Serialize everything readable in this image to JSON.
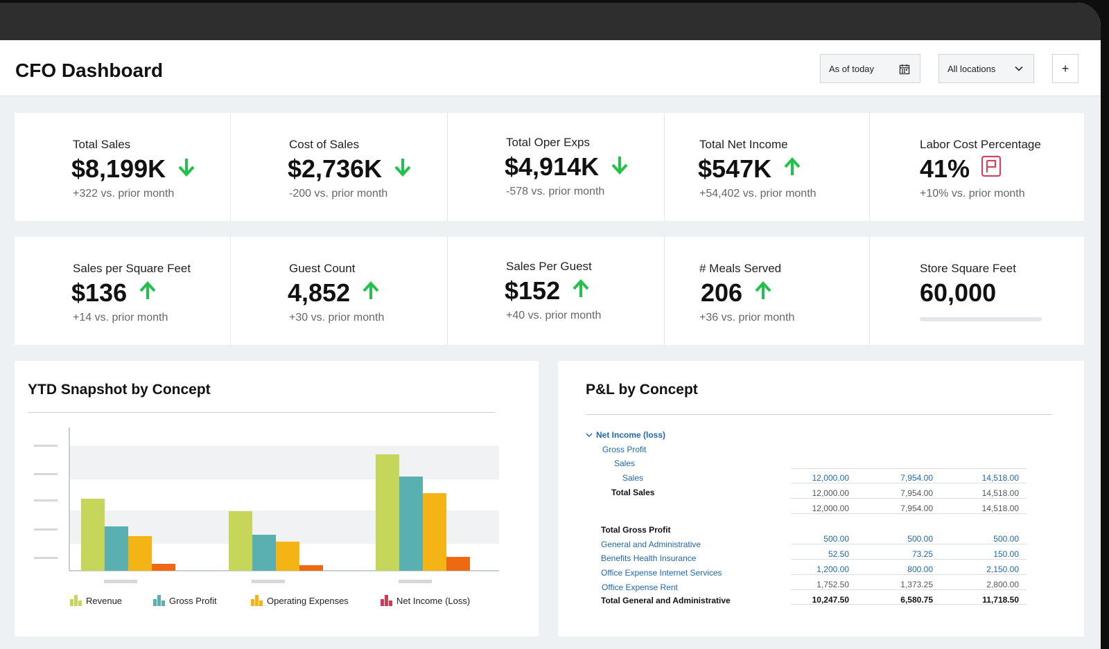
{
  "header": {
    "title": "CFO Dashboard",
    "date_filter": "As of today",
    "location_filter": "All locations",
    "add_label": "+"
  },
  "colors": {
    "up": "#22c24a",
    "down": "#22c24a",
    "flag": "#d0455e",
    "link": "#1f67ad"
  },
  "kpis_row1": [
    {
      "label": "Total Sales",
      "value": "$8,199K",
      "trend": "down",
      "delta": "+322 vs. prior month"
    },
    {
      "label": "Cost of Sales",
      "value": "$2,736K",
      "trend": "down",
      "delta": "-200 vs. prior month"
    },
    {
      "label": "Total Oper Exps",
      "value": "$4,914K",
      "trend": "down",
      "delta": "-578 vs. prior month"
    },
    {
      "label": "Total Net Income",
      "value": "$547K",
      "trend": "up",
      "delta": "+54,402 vs. prior month"
    },
    {
      "label": "Labor Cost Percentage",
      "value": "41%",
      "trend": "flag",
      "delta": "+10% vs. prior month"
    }
  ],
  "kpis_row2": [
    {
      "label": "Sales per Square Feet",
      "value": "$136",
      "trend": "up",
      "delta": "+14 vs. prior month"
    },
    {
      "label": "Guest Count",
      "value": "4,852",
      "trend": "up",
      "delta": "+30 vs. prior month"
    },
    {
      "label": "Sales Per Guest",
      "value": "$152",
      "trend": "up",
      "delta": "+40 vs. prior month"
    },
    {
      "label": "# Meals Served",
      "value": "206",
      "trend": "up",
      "delta": "+36 vs. prior month"
    },
    {
      "label": "Store Square Feet",
      "value": "60,000",
      "trend": "none",
      "delta": ""
    }
  ],
  "ytd": {
    "title": "YTD Snapshot by Concept",
    "chart_data": {
      "type": "bar",
      "title": "YTD Snapshot by Concept",
      "categories": [
        "",
        "",
        ""
      ],
      "ylim": [
        0,
        100
      ],
      "grid": true,
      "legend": "bottom",
      "series": [
        {
          "name": "Revenue",
          "color": "#c5d65a",
          "values": [
            52,
            43,
            84
          ]
        },
        {
          "name": "Gross Profit",
          "color": "#5aafb0",
          "values": [
            32,
            26,
            68
          ]
        },
        {
          "name": "Operating Expenses",
          "color": "#f5b416",
          "values": [
            25,
            21,
            56
          ]
        },
        {
          "name": "Net Income (Loss)",
          "color": "#ee6a12",
          "values": [
            5,
            4,
            10
          ]
        }
      ]
    }
  },
  "pl": {
    "title": "P&L by Concept",
    "tree": {
      "net_income": "Net Income (loss)",
      "gross_profit": "Gross Profit",
      "sales_group": "Sales",
      "sales_item": "Sales",
      "total_sales": "Total Sales",
      "total_gross_profit": "Total Gross Profit",
      "gen_admin": "General and Administrative",
      "benefits": "Benefits Health Insurance",
      "internet": "Office Expense Internet Services",
      "rent": "Office Expense Rent",
      "total_gen_admin": "Total General and Administrative"
    },
    "rows": {
      "sales": [
        "12,000.00",
        "7,954.00",
        "14,518.00"
      ],
      "total_sales": [
        "12,000.00",
        "7,954.00",
        "14,518.00"
      ],
      "gross_total": [
        "12,000.00",
        "7,954.00",
        "14,518.00"
      ],
      "gen_admin": [
        "500.00",
        "500.00",
        "500.00"
      ],
      "benefits": [
        "52.50",
        "73.25",
        "150.00"
      ],
      "internet": [
        "1,200.00",
        "800.00",
        "2,150.00"
      ],
      "rent": [
        "1,752.50",
        "1,373.25",
        "2,800.00"
      ],
      "total_gen_admin": [
        "10,247.50",
        "6,580.75",
        "11,718.50"
      ]
    }
  }
}
